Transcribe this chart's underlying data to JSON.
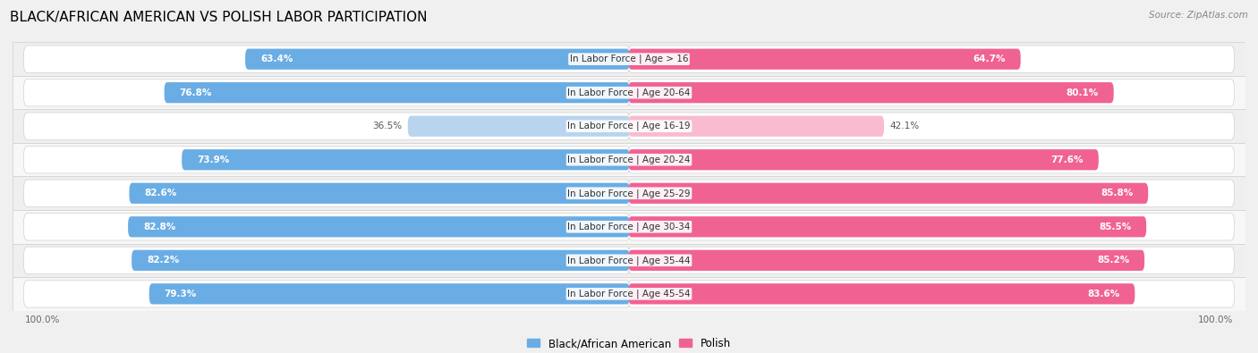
{
  "title": "BLACK/AFRICAN AMERICAN VS POLISH LABOR PARTICIPATION",
  "source": "Source: ZipAtlas.com",
  "categories": [
    "In Labor Force | Age > 16",
    "In Labor Force | Age 20-64",
    "In Labor Force | Age 16-19",
    "In Labor Force | Age 20-24",
    "In Labor Force | Age 25-29",
    "In Labor Force | Age 30-34",
    "In Labor Force | Age 35-44",
    "In Labor Force | Age 45-54"
  ],
  "black_values": [
    63.4,
    76.8,
    36.5,
    73.9,
    82.6,
    82.8,
    82.2,
    79.3
  ],
  "polish_values": [
    64.7,
    80.1,
    42.1,
    77.6,
    85.8,
    85.5,
    85.2,
    83.6
  ],
  "black_color": "#6aade4",
  "black_color_light": "#b8d4ee",
  "polish_color": "#f06292",
  "polish_color_light": "#f8bbd0",
  "track_color": "#e8e8e8",
  "row_bg_odd": "#f7f7f7",
  "row_bg_even": "#efefef",
  "separator_color": "#d0d0d0",
  "bg_color": "#f0f0f0",
  "legend_black": "Black/African American",
  "legend_polish": "Polish",
  "title_fontsize": 11,
  "label_fontsize": 7.5,
  "value_fontsize": 7.5,
  "axis_label_fontsize": 7.5
}
